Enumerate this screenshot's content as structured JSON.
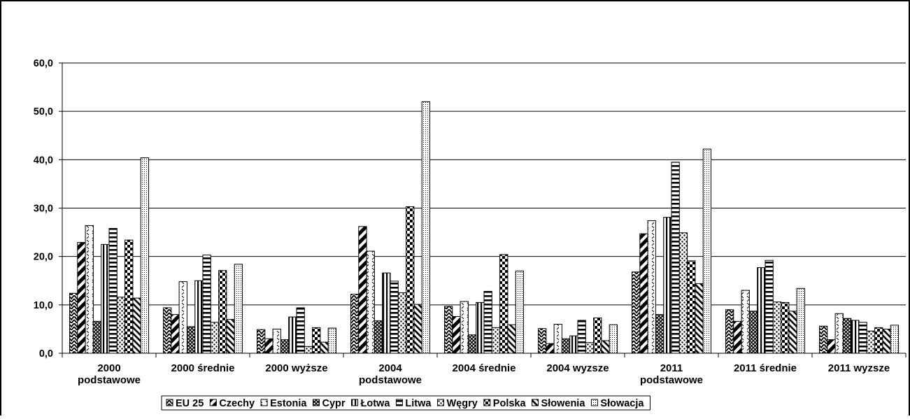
{
  "chart_data": {
    "type": "bar",
    "categories": [
      [
        "2000",
        "podstawowe"
      ],
      [
        "2000 średnie"
      ],
      [
        "2000 wyższe"
      ],
      [
        "2004",
        "podstawowe"
      ],
      [
        "2004 średnie"
      ],
      [
        "2004 wyzsze"
      ],
      [
        "2011",
        "podstawowe"
      ],
      [
        "2011 średnie"
      ],
      [
        "2011 wyzsze"
      ]
    ],
    "yticks": [
      "0,0",
      "10,0",
      "20,0",
      "30,0",
      "40,0",
      "50,0",
      "60,0"
    ],
    "ylim": [
      0,
      60
    ],
    "grid": true,
    "legend_position": "bottom",
    "series": [
      {
        "name": "EU 25",
        "pattern": "chevron",
        "values": [
          12.4,
          9.4,
          4.9,
          12.2,
          9.7,
          5.1,
          16.8,
          9.0,
          5.6
        ]
      },
      {
        "name": "Czechy",
        "pattern": "wide-diag",
        "values": [
          22.9,
          8.0,
          3.0,
          26.2,
          7.6,
          2.0,
          24.7,
          6.6,
          2.8
        ]
      },
      {
        "name": "Estonia",
        "pattern": "dash-zigzag",
        "values": [
          26.4,
          14.8,
          5.0,
          21.1,
          10.7,
          6.0,
          27.4,
          13.0,
          8.2
        ]
      },
      {
        "name": "Cypr",
        "pattern": "crosshatch",
        "values": [
          6.6,
          5.5,
          2.8,
          6.7,
          3.8,
          3.0,
          8.0,
          8.7,
          7.2
        ]
      },
      {
        "name": "Łotwa",
        "pattern": "vertical",
        "values": [
          22.5,
          15.0,
          7.5,
          16.6,
          10.5,
          3.6,
          28.1,
          17.7,
          6.8
        ]
      },
      {
        "name": "Litwa",
        "pattern": "horizontal",
        "values": [
          25.8,
          20.3,
          9.4,
          14.9,
          12.8,
          6.8,
          39.5,
          19.2,
          6.4
        ]
      },
      {
        "name": "Węgry",
        "pattern": "dots",
        "values": [
          11.6,
          6.4,
          1.4,
          12.5,
          5.3,
          2.2,
          24.9,
          10.6,
          4.6
        ]
      },
      {
        "name": "Polska",
        "pattern": "checker",
        "values": [
          23.4,
          17.1,
          5.3,
          30.3,
          20.4,
          7.3,
          19.1,
          10.5,
          5.3
        ]
      },
      {
        "name": "Słowenia",
        "pattern": "diag-back",
        "values": [
          11.4,
          7.0,
          2.3,
          10.1,
          5.9,
          2.6,
          14.4,
          8.7,
          5.0
        ]
      },
      {
        "name": "Słowacja",
        "pattern": "fine-dots",
        "values": [
          40.4,
          18.4,
          5.2,
          52.0,
          17.0,
          5.9,
          42.2,
          13.4,
          5.8
        ]
      }
    ]
  }
}
